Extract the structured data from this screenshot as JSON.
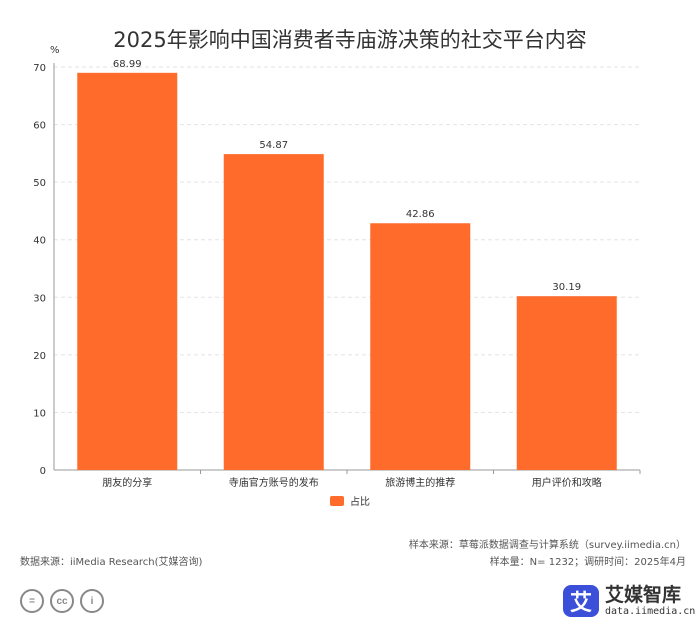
{
  "chart_data": {
    "type": "bar",
    "title": "2025年影响中国消费者寺庙游决策的社交平台内容",
    "ylabel": "%",
    "xlabel": "",
    "ylim": [
      0,
      70
    ],
    "yticks": [
      0,
      10,
      20,
      30,
      40,
      50,
      60,
      70
    ],
    "categories": [
      "朋友的分享",
      "寺庙官方账号的发布",
      "旅游博主的推荐",
      "用户评价和攻略"
    ],
    "series": [
      {
        "name": "占比",
        "values": [
          68.99,
          54.87,
          42.86,
          30.19
        ],
        "color": "#ff6b2b"
      }
    ],
    "legend_position": "bottom-center",
    "grid": true
  },
  "footer": {
    "source_right": "样本来源：草莓派数据调查与计算系统（survey.iimedia.cn）",
    "sample_info": "样本量：N= 1232；调研时间：2025年4月",
    "source_left": "数据来源：iiMedia Research(艾媒咨询)"
  },
  "license_icons": [
    "equals-icon",
    "cc-icon",
    "person-icon"
  ],
  "license_glyphs": [
    "=",
    "cc",
    "i"
  ],
  "logo": {
    "mark": "艾",
    "name": "艾媒智库",
    "url": "data.iimedia.cn"
  }
}
